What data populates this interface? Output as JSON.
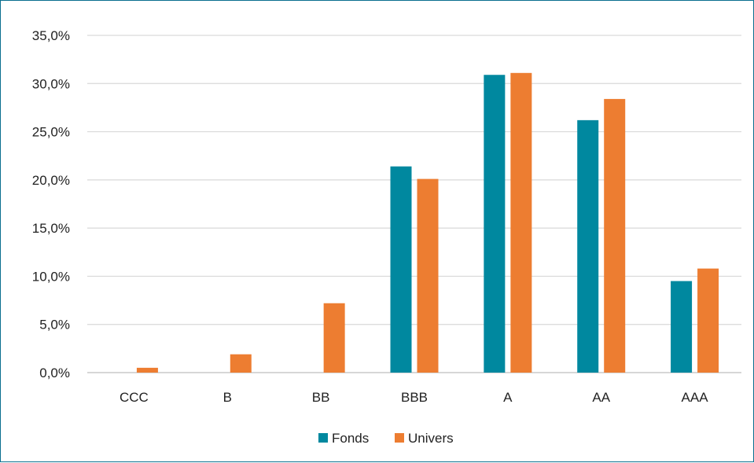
{
  "chart_data": {
    "type": "bar",
    "title": "",
    "xlabel": "",
    "ylabel": "",
    "categories": [
      "CCC",
      "B",
      "BB",
      "BBB",
      "A",
      "AA",
      "AAA"
    ],
    "series": [
      {
        "name": "Fonds",
        "color": "#00889f",
        "values": [
          0.0,
          0.0,
          0.0,
          21.4,
          30.9,
          26.2,
          9.5
        ]
      },
      {
        "name": "Univers",
        "color": "#ed7d31",
        "values": [
          0.5,
          1.9,
          7.2,
          20.1,
          31.1,
          28.4,
          10.8
        ]
      }
    ],
    "ylim": [
      0,
      35
    ],
    "y_ticks": [
      0,
      5,
      10,
      15,
      20,
      25,
      30,
      35
    ],
    "y_tick_labels": [
      "0,0%",
      "5,0%",
      "10,0%",
      "15,0%",
      "20,0%",
      "25,0%",
      "30,0%",
      "35,0%"
    ],
    "grid": true,
    "legend_position": "bottom"
  },
  "colors": {
    "frame_border": "#0a6f8f",
    "gridline": "#d9d9d9",
    "axis_line": "#bfbfbf"
  }
}
